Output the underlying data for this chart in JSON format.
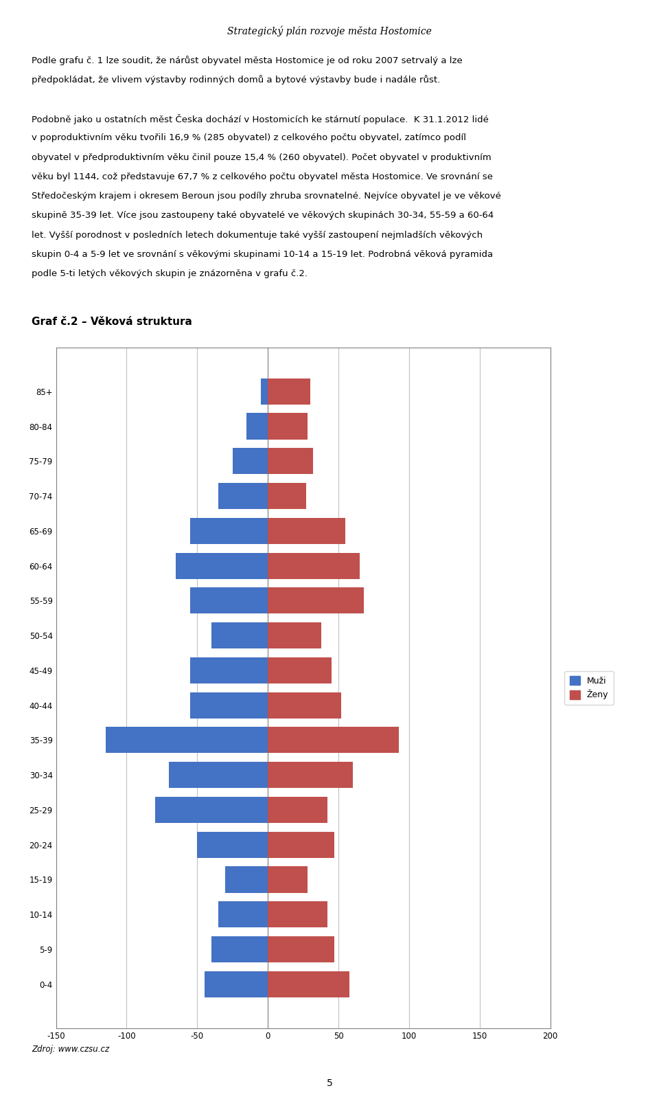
{
  "title": "Graf č.2 – Věková struktura",
  "header": "Strategický plán rozvoje města Hostomice",
  "age_groups": [
    "0-4",
    "5-9",
    "10-14",
    "15-19",
    "20-24",
    "25-29",
    "30-34",
    "35-39",
    "40-44",
    "45-49",
    "50-54",
    "55-59",
    "60-64",
    "65-69",
    "70-74",
    "75-79",
    "80-84",
    "85+"
  ],
  "muzi": [
    -45,
    -40,
    -35,
    -30,
    -50,
    -80,
    -70,
    -115,
    -55,
    -55,
    -40,
    -55,
    -65,
    -55,
    -35,
    -25,
    -15,
    -5
  ],
  "zeny": [
    58,
    47,
    42,
    28,
    47,
    42,
    60,
    93,
    52,
    45,
    38,
    68,
    65,
    55,
    27,
    32,
    28,
    30
  ],
  "muzi_color": "#4472C4",
  "zeny_color": "#C0504D",
  "background_color": "#FFFFFF",
  "xlim": [
    -150,
    200
  ],
  "xticks": [
    -150,
    -100,
    -50,
    0,
    50,
    100,
    150,
    200
  ],
  "grid_color": "#C0C0C0",
  "legend_muzi": "Muži",
  "legend_zeny": "Ženy",
  "source": "Zdroj: www.czsu.cz",
  "body_text_line1": "Podle grafu č. 1 lze soudit, že nárůst obyvatel města Hostomice je od roku 2007 setrvalý a lze",
  "body_text_line2": "předpokládat, že vlivem výstavby rodinných domů a bytové výstavby bude i nadále růst.",
  "body_text_para2": [
    "Podobně jako u ostatních měst Česka dochází v Hostomicích ke stárnutí populace.  K 31.1.2012 lidé",
    "v poproduktivním věku tvořili 16,9 % (285 obyvatel) z celkového počtu obyvatel, zatímco podíl",
    "obyvatel v předproduktivním věku činil pouze 15,4 % (260 obyvatel). Počet obyvatel v produktivním",
    "věku byl 1144, což představuje 67,7 % z celkového počtu obyvatel města Hostomice. Ve srovnání se",
    "Středočeským krajem i okresem Beroun jsou podíly zhruba srovnatelné. Nejvíce obyvatel je ve věkové",
    "skupině 35-39 let. Více jsou zastoupeny také obyvatelé ve věkových skupinách 30-34, 55-59 a 60-64",
    "let. Vyšší porodnost v posledních letech dokumentuje také vyšší zastoupení nejmladších věkových",
    "skupin 0-4 a 5-9 let ve srovnání s věkovými skupinami 10-14 a 15-19 let. Podrobná věková pyramida",
    "podle 5-ti letých věkových skupin je znázorněna v grafu č.2."
  ],
  "page_number": "5"
}
